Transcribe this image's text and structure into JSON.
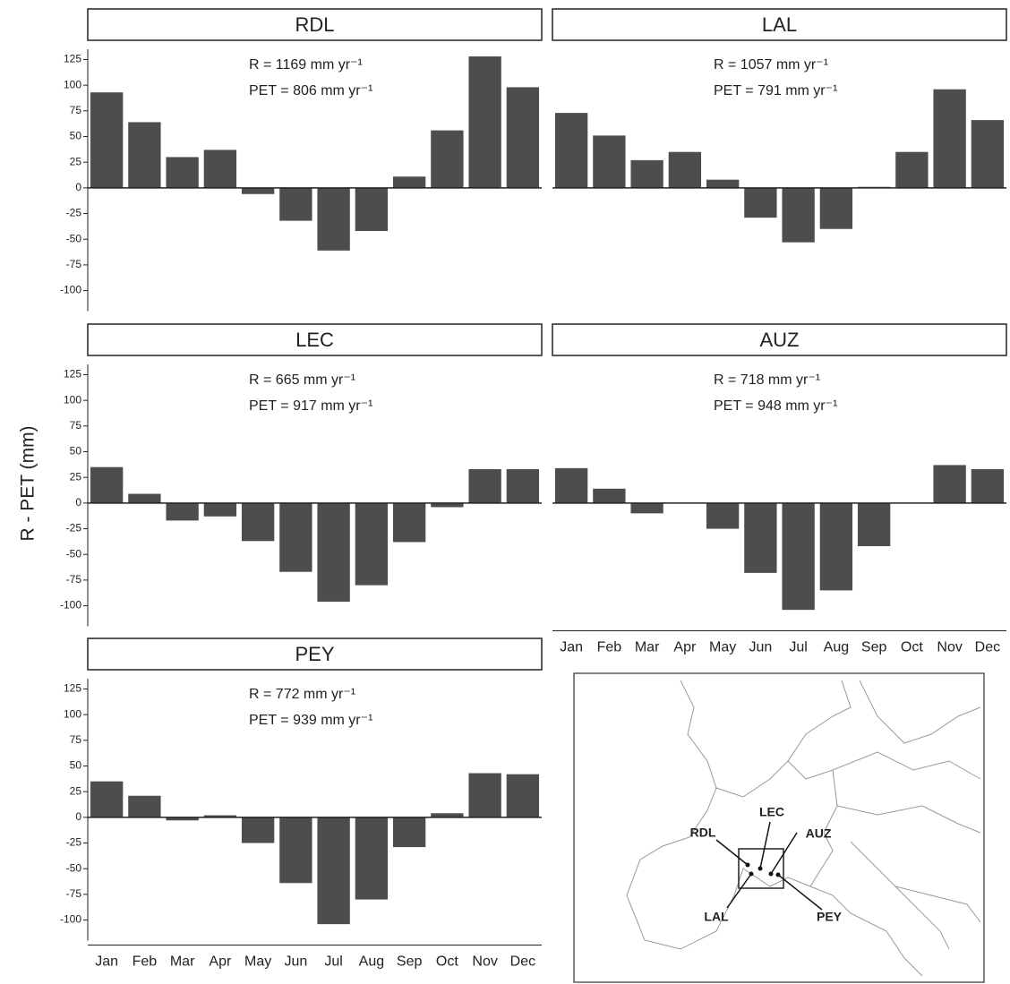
{
  "ylabel": "R - PET (mm)",
  "chart_data": [
    {
      "type": "bar",
      "title": "RDL",
      "annotations": [
        "R = 1169 mm yr⁻¹",
        "PET = 806 mm yr⁻¹"
      ],
      "categories": [
        "Jan",
        "Feb",
        "Mar",
        "Apr",
        "May",
        "Jun",
        "Jul",
        "Aug",
        "Sep",
        "Oct",
        "Nov",
        "Dec"
      ],
      "values": [
        93,
        64,
        30,
        37,
        -6,
        -32,
        -61,
        -42,
        11,
        56,
        128,
        98
      ],
      "color": "#4d4d4d",
      "ylim": [
        -120,
        135
      ],
      "yticks": [
        -100,
        -75,
        -50,
        -25,
        0,
        25,
        50,
        75,
        100,
        125
      ]
    },
    {
      "type": "bar",
      "title": "LAL",
      "annotations": [
        "R = 1057 mm yr⁻¹",
        "PET = 791 mm yr⁻¹"
      ],
      "categories": [
        "Jan",
        "Feb",
        "Mar",
        "Apr",
        "May",
        "Jun",
        "Jul",
        "Aug",
        "Sep",
        "Oct",
        "Nov",
        "Dec"
      ],
      "values": [
        73,
        51,
        27,
        35,
        8,
        -29,
        -53,
        -40,
        1,
        35,
        96,
        66
      ],
      "color": "#4d4d4d",
      "ylim": [
        -120,
        135
      ]
    },
    {
      "type": "bar",
      "title": "LEC",
      "annotations": [
        "R = 665 mm yr⁻¹",
        "PET = 917 mm yr⁻¹"
      ],
      "categories": [
        "Jan",
        "Feb",
        "Mar",
        "Apr",
        "May",
        "Jun",
        "Jul",
        "Aug",
        "Sep",
        "Oct",
        "Nov",
        "Dec"
      ],
      "values": [
        35,
        9,
        -17,
        -13,
        -37,
        -67,
        -96,
        -80,
        -38,
        -4,
        33,
        33
      ],
      "color": "#4d4d4d",
      "ylim": [
        -120,
        135
      ],
      "yticks": [
        -100,
        -75,
        -50,
        -25,
        0,
        25,
        50,
        75,
        100,
        125
      ]
    },
    {
      "type": "bar",
      "title": "AUZ",
      "annotations": [
        "R = 718 mm yr⁻¹",
        "PET = 948 mm yr⁻¹"
      ],
      "categories": [
        "Jan",
        "Feb",
        "Mar",
        "Apr",
        "May",
        "Jun",
        "Jul",
        "Aug",
        "Sep",
        "Oct",
        "Nov",
        "Dec"
      ],
      "values": [
        34,
        14,
        -10,
        0,
        -25,
        -68,
        -104,
        -85,
        -42,
        0,
        37,
        33
      ],
      "color": "#4d4d4d",
      "ylim": [
        -120,
        135
      ]
    },
    {
      "type": "bar",
      "title": "PEY",
      "annotations": [
        "R = 772 mm yr⁻¹",
        "PET = 939 mm yr⁻¹"
      ],
      "categories": [
        "Jan",
        "Feb",
        "Mar",
        "Apr",
        "May",
        "Jun",
        "Jul",
        "Aug",
        "Sep",
        "Oct",
        "Nov",
        "Dec"
      ],
      "values": [
        35,
        21,
        -3,
        2,
        -25,
        -64,
        -104,
        -80,
        -29,
        4,
        43,
        42
      ],
      "color": "#4d4d4d",
      "ylim": [
        -120,
        135
      ],
      "yticks": [
        -100,
        -75,
        -50,
        -25,
        0,
        25,
        50,
        75,
        100,
        125
      ]
    }
  ],
  "map": {
    "labels": [
      "RDL",
      "LEC",
      "AUZ",
      "LAL",
      "PEY"
    ]
  }
}
